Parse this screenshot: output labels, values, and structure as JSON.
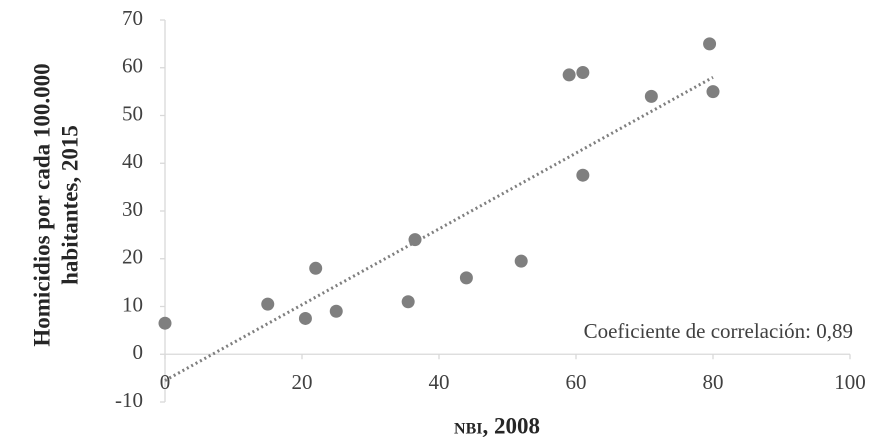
{
  "chart_data": {
    "type": "scatter",
    "y_label": [
      "Homicidios por cada 100.000",
      "habitantes, 2015"
    ],
    "x_label": "NBI, 2008",
    "annotation": "Coeficiente de correlación:  0,89",
    "color": "#7f7f7f",
    "x": [
      0,
      15,
      20.5,
      22,
      25,
      35.5,
      36.5,
      44,
      52,
      59,
      61,
      61,
      71,
      79.5,
      80
    ],
    "values": [
      6.5,
      10.5,
      7.5,
      18,
      9,
      11,
      24,
      16,
      19.5,
      58.5,
      59,
      37.5,
      54,
      65,
      55
    ],
    "trendline": {
      "x": [
        0,
        80
      ],
      "y": [
        -5.5,
        58
      ],
      "color": "#7f7f7f"
    },
    "xlim": [
      0,
      100
    ],
    "xticks": [
      0,
      20,
      40,
      60,
      80,
      100
    ],
    "ylim": [
      -10,
      70
    ],
    "yticks": [
      -10,
      0,
      10,
      20,
      30,
      40,
      50,
      60,
      70
    ],
    "grid": false
  }
}
